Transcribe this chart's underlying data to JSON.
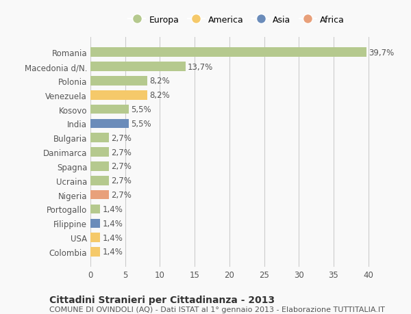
{
  "countries": [
    "Romania",
    "Macedonia d/N.",
    "Polonia",
    "Venezuela",
    "Kosovo",
    "India",
    "Bulgaria",
    "Danimarca",
    "Spagna",
    "Ucraina",
    "Nigeria",
    "Portogallo",
    "Filippine",
    "USA",
    "Colombia"
  ],
  "values": [
    39.7,
    13.7,
    8.2,
    8.2,
    5.5,
    5.5,
    2.7,
    2.7,
    2.7,
    2.7,
    2.7,
    1.4,
    1.4,
    1.4,
    1.4
  ],
  "labels": [
    "39,7%",
    "13,7%",
    "8,2%",
    "8,2%",
    "5,5%",
    "5,5%",
    "2,7%",
    "2,7%",
    "2,7%",
    "2,7%",
    "2,7%",
    "1,4%",
    "1,4%",
    "1,4%",
    "1,4%"
  ],
  "continents": [
    "Europa",
    "Europa",
    "Europa",
    "America",
    "Europa",
    "Asia",
    "Europa",
    "Europa",
    "Europa",
    "Europa",
    "Africa",
    "Europa",
    "Asia",
    "America",
    "America"
  ],
  "continent_colors": {
    "Europa": "#b5c98e",
    "America": "#f5c96a",
    "Asia": "#6b8cba",
    "Africa": "#e8a07a"
  },
  "legend_order": [
    "Europa",
    "America",
    "Asia",
    "Africa"
  ],
  "xlim": [
    0,
    42
  ],
  "xticks": [
    0,
    5,
    10,
    15,
    20,
    25,
    30,
    35,
    40
  ],
  "title": "Cittadini Stranieri per Cittadinanza - 2013",
  "subtitle": "COMUNE DI OVINDOLI (AQ) - Dati ISTAT al 1° gennaio 2013 - Elaborazione TUTTITALIA.IT",
  "bg_color": "#f9f9f9",
  "grid_color": "#cccccc",
  "bar_height": 0.65,
  "label_fontsize": 8.5,
  "tick_fontsize": 8.5,
  "title_fontsize": 10,
  "subtitle_fontsize": 8
}
